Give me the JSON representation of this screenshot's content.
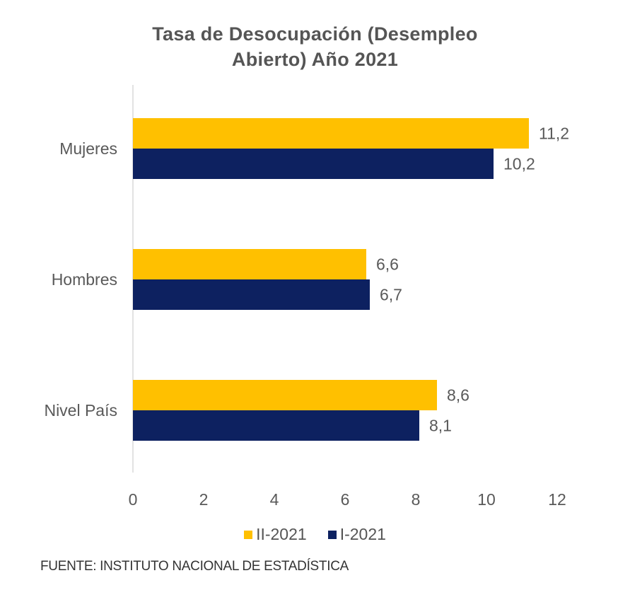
{
  "chart_data": {
    "type": "bar",
    "orientation": "horizontal",
    "title_lines": [
      "Tasa de Desocupación  (Desempleo",
      "Abierto) Año  2021"
    ],
    "categories": [
      "Mujeres",
      "Hombres",
      "Nivel País"
    ],
    "series": [
      {
        "name": "II-2021",
        "color": "#FFC000",
        "values": [
          11.2,
          6.6,
          8.6
        ],
        "labels": [
          "11,2",
          "6,6",
          "8,6"
        ]
      },
      {
        "name": "I-2021",
        "color": "#0D2160",
        "values": [
          10.2,
          6.7,
          8.1
        ],
        "labels": [
          "10,2",
          "6,7",
          "8,1"
        ]
      }
    ],
    "xlim": [
      0,
      12
    ],
    "xticks": [
      0,
      2,
      4,
      6,
      8,
      10,
      12
    ],
    "xtick_labels": [
      "0",
      "2",
      "4",
      "6",
      "8",
      "10",
      "12"
    ],
    "grid": false,
    "legend_position": "bottom",
    "source": "FUENTE: INSTITUTO NACIONAL DE ESTADÍSTICA"
  }
}
